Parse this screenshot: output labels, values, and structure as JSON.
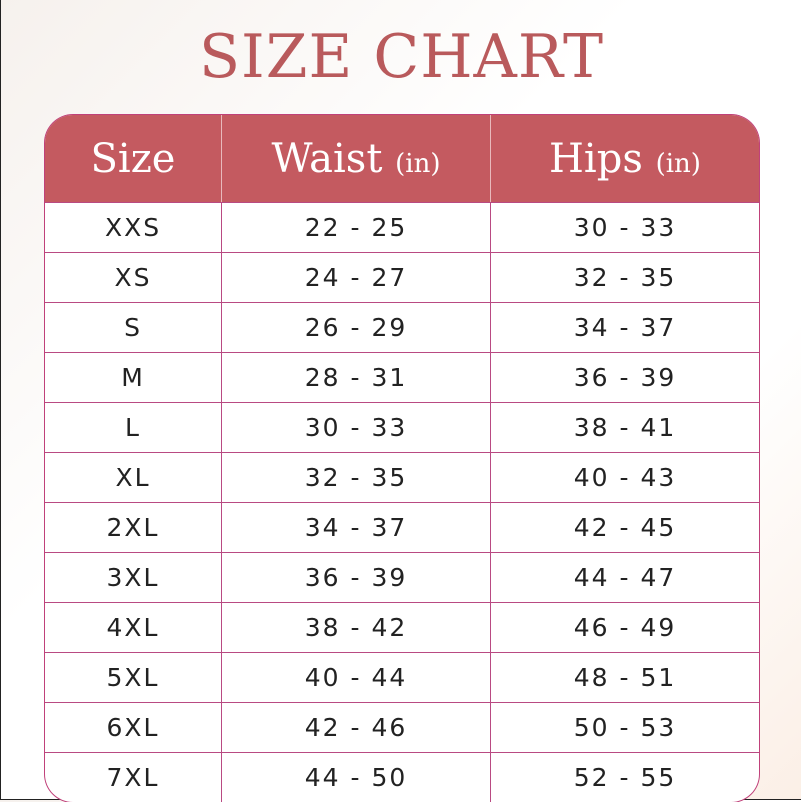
{
  "title": "SIZE CHART",
  "colors": {
    "header": "#c45a60",
    "title": "#b95a5c",
    "grid": "#b94a82"
  },
  "chart_data": {
    "type": "table",
    "title": "SIZE CHART",
    "columns": [
      {
        "label": "Size",
        "unit": ""
      },
      {
        "label": "Waist",
        "unit": "(in)"
      },
      {
        "label": "Hips",
        "unit": "(in)"
      }
    ],
    "rows": [
      [
        "XXS",
        "22 - 25",
        "30 - 33"
      ],
      [
        "XS",
        "24 - 27",
        "32 - 35"
      ],
      [
        "S",
        "26 - 29",
        "34 - 37"
      ],
      [
        "M",
        "28 - 31",
        "36 - 39"
      ],
      [
        "L",
        "30 - 33",
        "38 - 41"
      ],
      [
        "XL",
        "32 - 35",
        "40 - 43"
      ],
      [
        "2XL",
        "34 - 37",
        "42 - 45"
      ],
      [
        "3XL",
        "36 - 39",
        "44 - 47"
      ],
      [
        "4XL",
        "38 - 42",
        "46 - 49"
      ],
      [
        "5XL",
        "40 - 44",
        "48 - 51"
      ],
      [
        "6XL",
        "42 - 46",
        "50 - 53"
      ],
      [
        "7XL",
        "44 - 50",
        "52 - 55"
      ]
    ]
  }
}
